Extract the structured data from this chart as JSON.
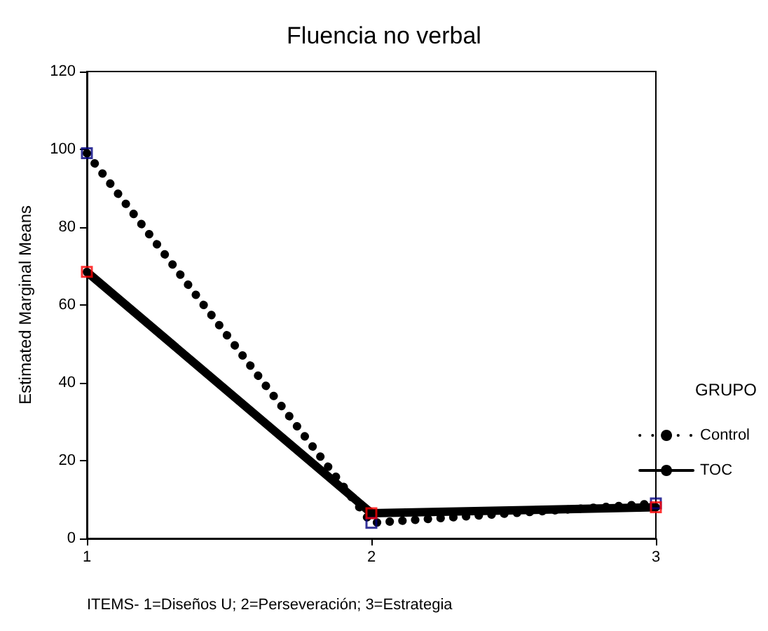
{
  "chart_data": {
    "type": "line",
    "title": "Fluencia no verbal",
    "xlabel": "ITEMS- 1=Diseños U; 2=Perseveración; 3=Estrategia",
    "ylabel": "Estimated Marginal Means",
    "legend_title": "GRUPO",
    "x": [
      1,
      2,
      3
    ],
    "xlim": [
      1,
      3
    ],
    "xticks": [
      1,
      2,
      3
    ],
    "ylim": [
      0,
      120
    ],
    "yticks": [
      0,
      20,
      40,
      60,
      80,
      100,
      120
    ],
    "grid": false,
    "legend": "right",
    "series": [
      {
        "name": "Control",
        "color": "#000000",
        "line_style": "dotted",
        "marker": "none",
        "values": [
          99,
          4,
          9
        ]
      },
      {
        "name": "TOC",
        "color": "#000000",
        "line_style": "solid",
        "marker": "none",
        "values": [
          68.5,
          6.5,
          8
        ]
      },
      {
        "type": "scatter",
        "color": "#000080",
        "marker": "square",
        "values": [
          99,
          4,
          9
        ]
      },
      {
        "type": "scatter",
        "color": "#ff0000",
        "marker": "square",
        "values": [
          68.5,
          6.5,
          8
        ]
      }
    ]
  }
}
